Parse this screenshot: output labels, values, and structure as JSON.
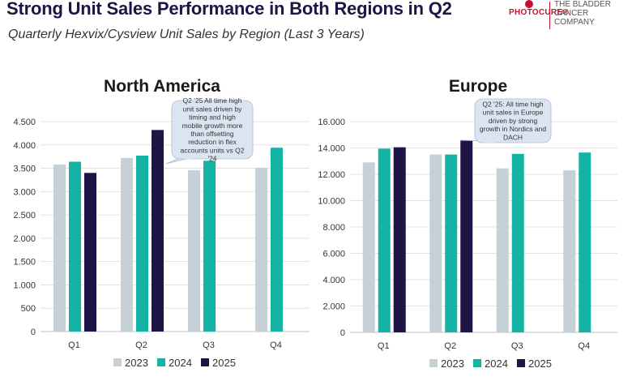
{
  "header": {
    "title": "Strong Unit Sales Performance in Both Regions in Q2",
    "subtitle": "Quarterly Hexvix/Cysview Unit Sales by Region (Last 3 Years)"
  },
  "logo": {
    "wordmark": "PHOTOCURE®",
    "tagline": "THE BLADDER CANCER COMPANY"
  },
  "colors": {
    "2023": "#c5d0d7",
    "2024": "#14b3a3",
    "2025": "#1f1446",
    "callout_fill": "#dbe5f1",
    "callout_stroke": "#a9bcd6",
    "title": "#1f1446"
  },
  "chart_data": [
    {
      "type": "bar",
      "title": "North America",
      "categories": [
        "Q1",
        "Q2",
        "Q3",
        "Q4"
      ],
      "ylim": [
        0,
        4500
      ],
      "yticks": [
        0,
        500,
        1000,
        1500,
        2000,
        2500,
        3000,
        3500,
        4000,
        4500
      ],
      "ytick_labels": [
        "0",
        "500",
        "1.000",
        "1.500",
        "2.000",
        "2.500",
        "3.000",
        "3.500",
        "4.000",
        "4.500"
      ],
      "grid": true,
      "legend": "bottom",
      "series": [
        {
          "name": "2023",
          "values": [
            3580,
            3720,
            3460,
            3510
          ]
        },
        {
          "name": "2024",
          "values": [
            3640,
            3770,
            3660,
            3940
          ]
        },
        {
          "name": "2025",
          "values": [
            3400,
            4320,
            null,
            null
          ]
        }
      ],
      "annotation": "Q2 '25 All time high unit sales driven by timing and high mobile growth more than offsetting reduction in flex accounts units vs Q2 '24"
    },
    {
      "type": "bar",
      "title": "Europe",
      "categories": [
        "Q1",
        "Q2",
        "Q3",
        "Q4"
      ],
      "ylim": [
        0,
        16000
      ],
      "yticks": [
        0,
        2000,
        4000,
        6000,
        8000,
        10000,
        12000,
        14000,
        16000
      ],
      "ytick_labels": [
        "0",
        "2.000",
        "4.000",
        "6.000",
        "8.000",
        "10.000",
        "12.000",
        "14.000",
        "16.000"
      ],
      "grid": true,
      "legend": "bottom",
      "series": [
        {
          "name": "2023",
          "values": [
            12900,
            13500,
            12450,
            12300
          ]
        },
        {
          "name": "2024",
          "values": [
            13950,
            13500,
            13550,
            13650
          ]
        },
        {
          "name": "2025",
          "values": [
            14050,
            14550,
            null,
            null
          ]
        }
      ],
      "annotation": "Q2 '25: All time high unit sales in Europe driven by strong growth in Nordics and DACH"
    }
  ]
}
